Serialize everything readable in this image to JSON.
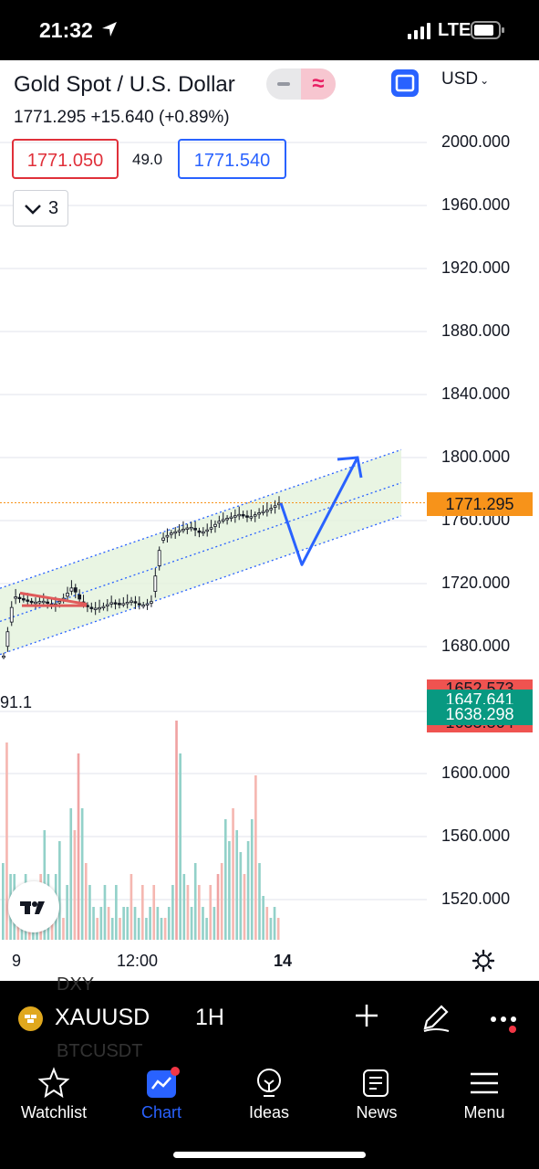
{
  "status_bar": {
    "time": "21:32",
    "network": "LTE"
  },
  "header": {
    "symbol_title": "Gold Spot / U.S. Dollar",
    "price_line": "1771.295  +15.640 (+0.89%)",
    "currency": "USD",
    "bid": "1771.050",
    "spread": "49.0",
    "ask": "1771.540",
    "indicators_count": "3"
  },
  "colors": {
    "accent": "#2962ff",
    "bid": "#e0303a",
    "last_price_tag": "#f7931a",
    "up": "#26a69a",
    "down": "#ef5350",
    "channel_fill": "#e3f2dc"
  },
  "chart_data": {
    "type": "candlestick",
    "symbol": "XAUUSD",
    "interval": "1H",
    "last_price": 1771.295,
    "y_ticks": [
      2000,
      1960,
      1920,
      1880,
      1840,
      1800,
      1760,
      1720,
      1680,
      1600,
      1560,
      1520
    ],
    "y_tick_labels": [
      "2000.000",
      "1960.000",
      "1920.000",
      "1880.000",
      "1840.000",
      "1800.000",
      "1760.000",
      "1720.000",
      "1680.000",
      "1600.000",
      "1560.000",
      "1520.000"
    ],
    "x_tick_labels": [
      "9",
      "12:00",
      "14"
    ],
    "last_price_label": "1771.295",
    "indicator_tags": [
      "1652.573",
      "1647.641",
      "1638.298",
      "1633.364"
    ],
    "volume_indicator_value": "91.1",
    "price_path": [
      1674,
      1712,
      1710,
      1708,
      1709,
      1706,
      1710,
      1718,
      1707,
      1704,
      1705,
      1708,
      1707,
      1709,
      1706,
      1708,
      1748,
      1752,
      1754,
      1756,
      1752,
      1755,
      1760,
      1762,
      1764,
      1762,
      1765,
      1767,
      1771
    ],
    "channel": {
      "start_price_lower": 1675,
      "start_price_upper": 1717,
      "end_price_lower": 1763,
      "end_price_upper": 1805
    },
    "projection": [
      1771,
      1732,
      1800
    ],
    "volumes": [
      0.35,
      0.9,
      0.3,
      0.3,
      0.2,
      0.15,
      0.3,
      0.15,
      0.1,
      0.1,
      0.3,
      0.5,
      0.3,
      0.15,
      0.3,
      0.45,
      0.1,
      0.25,
      0.6,
      0.5,
      0.85,
      0.6,
      0.35,
      0.25,
      0.15,
      0.1,
      0.15,
      0.25,
      0.15,
      0.1,
      0.25,
      0.1,
      0.15,
      0.15,
      0.3,
      0.15,
      0.1,
      0.25,
      0.1,
      0.15,
      0.25,
      0.15,
      0.1,
      0.1,
      0.15,
      0.25,
      1.0,
      0.85,
      0.3,
      0.25,
      0.15,
      0.35,
      0.25,
      0.15,
      0.1,
      0.25,
      0.15,
      0.3,
      0.35,
      0.55,
      0.45,
      0.6,
      0.5,
      0.4,
      0.3,
      0.45,
      0.55,
      0.75,
      0.35,
      0.2,
      0.15,
      0.1,
      0.15,
      0.1
    ],
    "volume_colors_down_idx": [
      20,
      46,
      57
    ]
  },
  "toolbar": {
    "symbol": "XAUUSD",
    "interval": "1H",
    "ghost_1": "DXY",
    "ghost_2": "BTCUSDT"
  },
  "nav": {
    "items": [
      {
        "label": "Watchlist"
      },
      {
        "label": "Chart"
      },
      {
        "label": "Ideas"
      },
      {
        "label": "News"
      },
      {
        "label": "Menu"
      }
    ]
  }
}
